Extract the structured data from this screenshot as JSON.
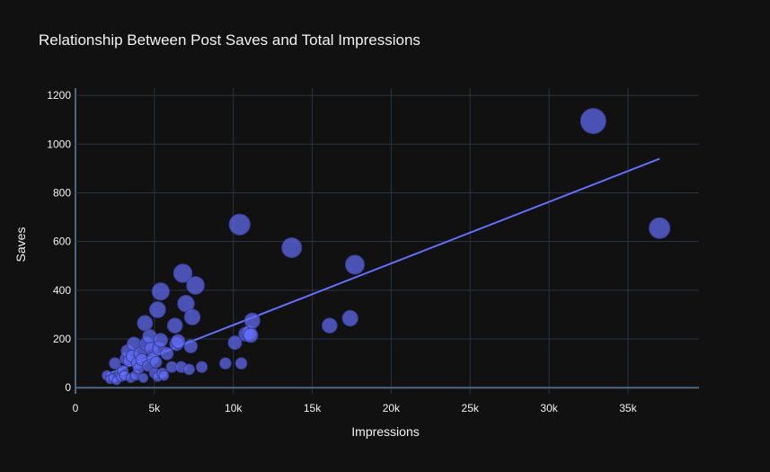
{
  "chart_data": {
    "type": "scatter",
    "title": "Relationship Between Post Saves and Total Impressions",
    "xlabel": "Impressions",
    "ylabel": "Saves",
    "xlim": [
      0,
      39500
    ],
    "ylim": [
      -25,
      1230
    ],
    "x_ticks": [
      0,
      5000,
      10000,
      15000,
      20000,
      25000,
      30000,
      35000
    ],
    "x_tick_labels": [
      "0",
      "5k",
      "10k",
      "15k",
      "20k",
      "25k",
      "30k",
      "35k"
    ],
    "y_ticks": [
      0,
      200,
      400,
      600,
      800,
      1000,
      1200
    ],
    "y_tick_labels": [
      "0",
      "200",
      "400",
      "600",
      "800",
      "1000",
      "1200"
    ],
    "grid": true,
    "colors": {
      "background": "#111111",
      "grid": "#283442",
      "marker": "#636efa",
      "text": "#f2f2f2"
    },
    "points": [
      {
        "x": 2000,
        "y": 50
      },
      {
        "x": 2200,
        "y": 35
      },
      {
        "x": 2400,
        "y": 40
      },
      {
        "x": 2500,
        "y": 100
      },
      {
        "x": 2600,
        "y": 30
      },
      {
        "x": 2800,
        "y": 60
      },
      {
        "x": 2900,
        "y": 45
      },
      {
        "x": 3000,
        "y": 70
      },
      {
        "x": 3100,
        "y": 50
      },
      {
        "x": 3200,
        "y": 120
      },
      {
        "x": 3300,
        "y": 150
      },
      {
        "x": 3400,
        "y": 110
      },
      {
        "x": 3500,
        "y": 40
      },
      {
        "x": 3600,
        "y": 130
      },
      {
        "x": 3700,
        "y": 180
      },
      {
        "x": 3800,
        "y": 50
      },
      {
        "x": 3900,
        "y": 100
      },
      {
        "x": 4000,
        "y": 80
      },
      {
        "x": 4100,
        "y": 140
      },
      {
        "x": 4200,
        "y": 115
      },
      {
        "x": 4300,
        "y": 40
      },
      {
        "x": 4400,
        "y": 265
      },
      {
        "x": 4500,
        "y": 180
      },
      {
        "x": 4600,
        "y": 90
      },
      {
        "x": 4700,
        "y": 210
      },
      {
        "x": 4800,
        "y": 160
      },
      {
        "x": 4900,
        "y": 120
      },
      {
        "x": 5000,
        "y": 60
      },
      {
        "x": 5100,
        "y": 105
      },
      {
        "x": 5200,
        "y": 45
      },
      {
        "x": 5200,
        "y": 320
      },
      {
        "x": 5300,
        "y": 160
      },
      {
        "x": 5400,
        "y": 395
      },
      {
        "x": 5400,
        "y": 195
      },
      {
        "x": 5500,
        "y": 60
      },
      {
        "x": 5600,
        "y": 50
      },
      {
        "x": 5800,
        "y": 140
      },
      {
        "x": 6100,
        "y": 85
      },
      {
        "x": 6300,
        "y": 255
      },
      {
        "x": 6400,
        "y": 180
      },
      {
        "x": 6500,
        "y": 190
      },
      {
        "x": 6700,
        "y": 85
      },
      {
        "x": 6800,
        "y": 470
      },
      {
        "x": 7000,
        "y": 345
      },
      {
        "x": 7200,
        "y": 75
      },
      {
        "x": 7300,
        "y": 170
      },
      {
        "x": 7400,
        "y": 290
      },
      {
        "x": 7600,
        "y": 420
      },
      {
        "x": 8000,
        "y": 85
      },
      {
        "x": 9500,
        "y": 100
      },
      {
        "x": 10100,
        "y": 185
      },
      {
        "x": 10400,
        "y": 670
      },
      {
        "x": 10500,
        "y": 100
      },
      {
        "x": 10800,
        "y": 220
      },
      {
        "x": 11000,
        "y": 225
      },
      {
        "x": 11100,
        "y": 215
      },
      {
        "x": 11200,
        "y": 275
      },
      {
        "x": 13700,
        "y": 575
      },
      {
        "x": 16100,
        "y": 255
      },
      {
        "x": 17400,
        "y": 285
      },
      {
        "x": 17700,
        "y": 505
      },
      {
        "x": 32800,
        "y": 1095
      },
      {
        "x": 37000,
        "y": 655
      }
    ],
    "trendline": {
      "x": [
        2000,
        37000
      ],
      "y": [
        55,
        940
      ]
    }
  }
}
